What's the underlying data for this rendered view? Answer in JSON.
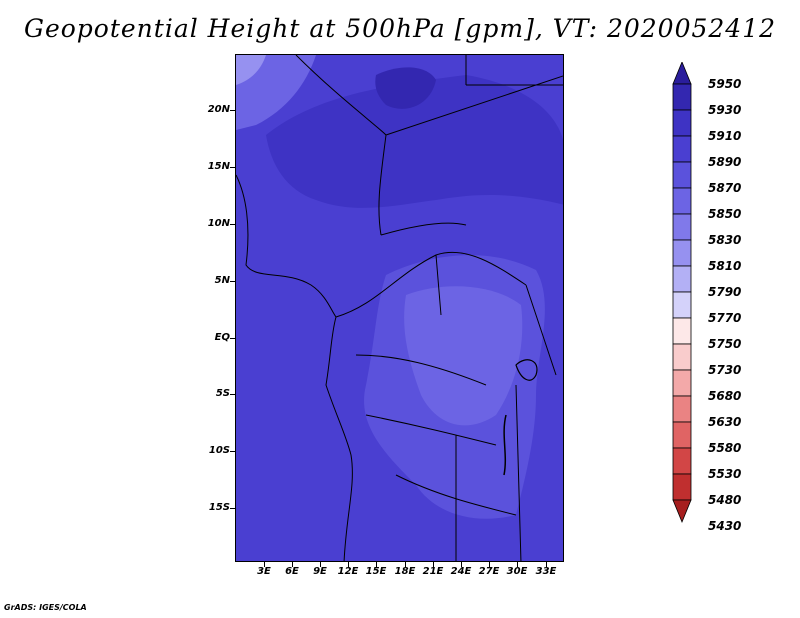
{
  "title": "Geopotential Height at 500hPa [gpm], VT: 2020052412",
  "credit": "GrADS: IGES/COLA",
  "chart_data": {
    "type": "heatmap",
    "title": "Geopotential Height at 500hPa [gpm], VT: 2020052412",
    "xlabel": "",
    "ylabel": "",
    "lon_range": [
      0,
      35
    ],
    "lat_range": [
      -20,
      24
    ],
    "lon_ticks": [
      "3E",
      "6E",
      "9E",
      "12E",
      "15E",
      "18E",
      "21E",
      "24E",
      "27E",
      "30E",
      "33E"
    ],
    "lat_ticks": [
      "20N",
      "15N",
      "10N",
      "5N",
      "EQ",
      "5S",
      "10S",
      "15S"
    ],
    "grid": false,
    "legend_position": "right",
    "colorbar": {
      "levels": [
        "5950",
        "5930",
        "5910",
        "5890",
        "5870",
        "5850",
        "5830",
        "5810",
        "5790",
        "5770",
        "5750",
        "5730",
        "5680",
        "5630",
        "5580",
        "5530",
        "5480",
        "5430"
      ],
      "colors": [
        "#2a1d9c",
        "#3327b0",
        "#3e33c4",
        "#4a3fd1",
        "#5b52dc",
        "#6c64e4",
        "#8079ea",
        "#9691f0",
        "#b3b0f5",
        "#d4d2fa",
        "#fde8e8",
        "#f9cccc",
        "#f3a9a9",
        "#ea8383",
        "#e06464",
        "#d24646",
        "#c02f2f",
        "#a61e1e"
      ]
    }
  }
}
